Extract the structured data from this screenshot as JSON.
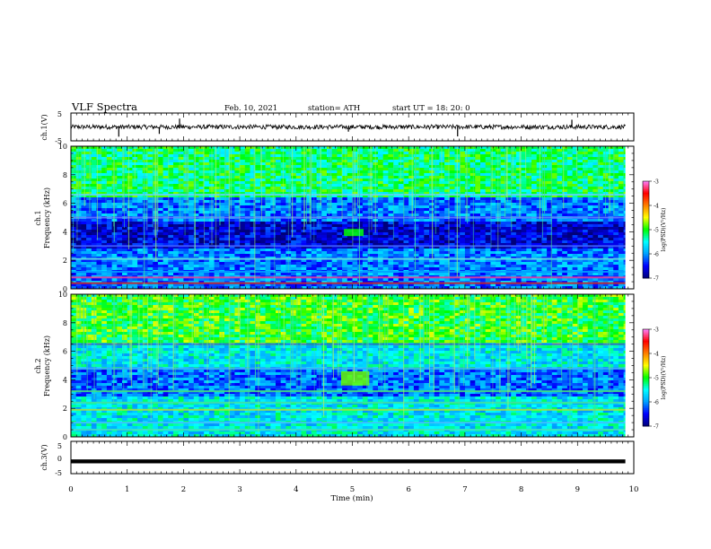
{
  "header": {
    "title": "VLF Spectra",
    "date": "Feb. 10, 2021",
    "station": "station= ATH",
    "start": "start  UT  =   18: 20: 0"
  },
  "chart_data": [
    {
      "type": "line",
      "panel": "ch1-waveform",
      "ylabel": "ch.1(V)",
      "ylim": [
        -5,
        5
      ],
      "yticks": [
        "5",
        "-5"
      ],
      "x_range_min": [
        0,
        9.85
      ],
      "baseline_volts": 0,
      "noise_amplitude_volts": 0.8,
      "spikes": [
        {
          "t": 0.85,
          "v": -3.5
        },
        {
          "t": 1.57,
          "v": -2.5
        },
        {
          "t": 1.93,
          "v": 3.0
        },
        {
          "t": 4.93,
          "v": -1.7
        },
        {
          "t": 6.87,
          "v": -3.4
        },
        {
          "t": 8.9,
          "v": 2.6
        }
      ]
    },
    {
      "type": "heatmap",
      "panel": "ch1-spectrogram",
      "ylabel": "ch.1",
      "ylabel2": "Frequency  (kHz)",
      "ylim": [
        0,
        10
      ],
      "yticks": [
        "10",
        "8",
        "6",
        "4",
        "2",
        "0"
      ],
      "colorbar": {
        "label": "log(PSD)(V²/Hz)",
        "ticks": [
          "-3",
          "-4",
          "-5",
          "-6",
          "-7"
        ],
        "range": [
          -7,
          -3
        ]
      },
      "background_level": -6.1,
      "upper_band_level": -5.2,
      "bands_khz": [
        {
          "f": 0.4,
          "level": -3.5,
          "color": "#d02020"
        },
        {
          "f": 0.8,
          "level": -3.8,
          "color": "#e040a0"
        },
        {
          "f": 1.2,
          "level": -5.3,
          "color": "#00a0ff"
        },
        {
          "f": 2.1,
          "level": -4.9,
          "color": "#60e0e0"
        },
        {
          "f": 3.0,
          "level": -6.0,
          "color": "#4060ff"
        },
        {
          "f": 5.0,
          "level": -5.8,
          "color": "#6080ff"
        },
        {
          "f": 6.6,
          "level": -5.0,
          "color": "#60d0ff"
        }
      ],
      "event": {
        "t_start": 4.85,
        "t_end": 5.2,
        "f_low": 3.7,
        "f_high": 4.2,
        "level": -5.0
      }
    },
    {
      "type": "heatmap",
      "panel": "ch2-spectrogram",
      "ylabel": "ch.2",
      "ylabel2": "Frequency  (kHz)",
      "ylim": [
        0,
        10
      ],
      "yticks": [
        "10",
        "8",
        "6",
        "4",
        "2",
        "0"
      ],
      "colorbar": {
        "label": "log(PSD)(V²/Hz)",
        "ticks": [
          "-3",
          "-4",
          "-5",
          "-6",
          "-7"
        ],
        "range": [
          -7,
          -3
        ]
      },
      "background_level": -5.6,
      "upper_band_level": -5.0,
      "bands_khz": [
        {
          "f": 0.5,
          "level": -4.8,
          "color": "#40e0c0"
        },
        {
          "f": 1.0,
          "level": -5.0,
          "color": "#40c0ff"
        },
        {
          "f": 1.9,
          "level": -4.3,
          "color": "#a0e040"
        },
        {
          "f": 2.4,
          "level": -4.7,
          "color": "#40e0a0"
        },
        {
          "f": 3.2,
          "level": -4.9,
          "color": "#40e080"
        },
        {
          "f": 4.8,
          "level": -5.2,
          "color": "#40a0ff"
        },
        {
          "f": 6.5,
          "level": -5.6,
          "color": "#2060ff"
        }
      ],
      "event": {
        "t_start": 4.8,
        "t_end": 5.3,
        "f_low": 3.6,
        "f_high": 4.6,
        "level": -4.8
      }
    },
    {
      "type": "line",
      "panel": "ch3-waveform",
      "ylabel": "ch.3(V)",
      "ylim": [
        -5,
        5
      ],
      "yticks": [
        "5",
        "0",
        "-5"
      ],
      "x_range_min": [
        0,
        9.85
      ],
      "baseline_volts": -1.2,
      "band_thickness_volts": 0.6
    }
  ],
  "xaxis": {
    "xlabel": "Time  (min)",
    "xlim": [
      0,
      10
    ],
    "ticks": [
      "0",
      "1",
      "2",
      "3",
      "4",
      "5",
      "6",
      "7",
      "8",
      "9",
      "10"
    ]
  },
  "colors": {
    "colormap": [
      "#00007a",
      "#0000ff",
      "#00a0ff",
      "#00ffff",
      "#00ff00",
      "#ffff00",
      "#ff8000",
      "#ff0000",
      "#ff80ff"
    ]
  }
}
